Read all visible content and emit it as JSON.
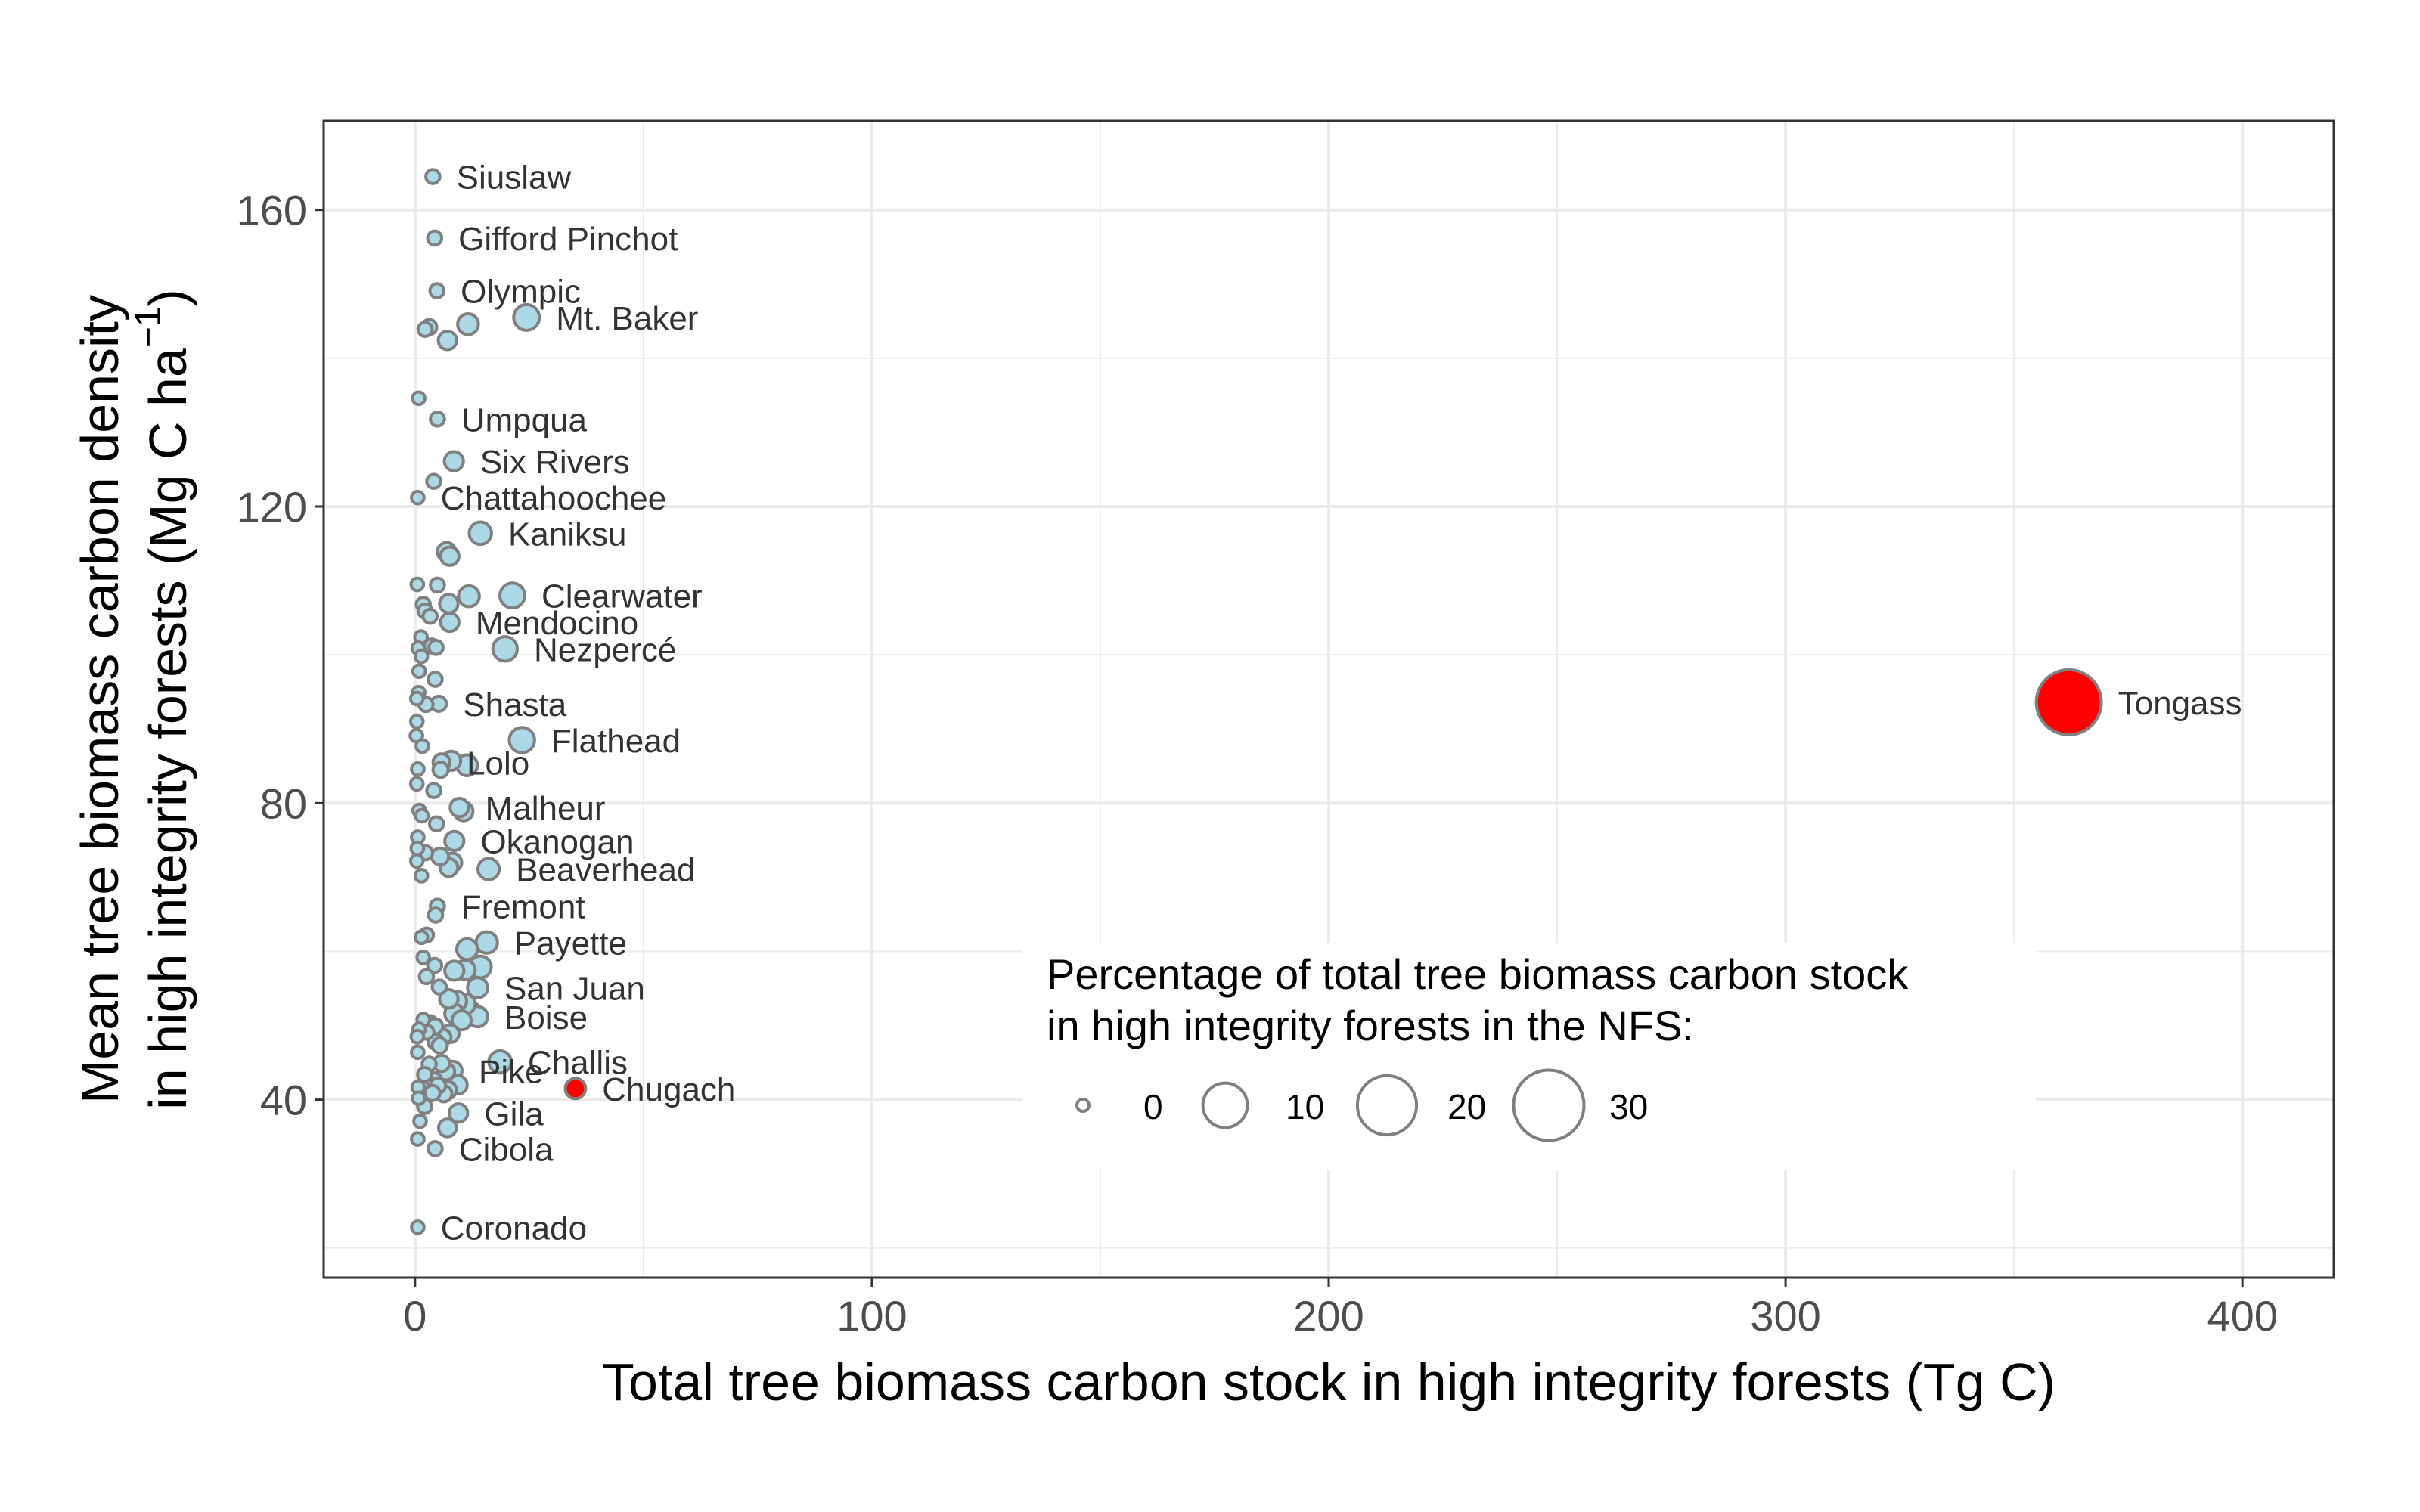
{
  "chart_data": {
    "type": "scatter",
    "title": "",
    "xlabel": "Total tree biomass carbon stock in high integrity forests (Tg C)",
    "ylabel_line1": "Mean tree biomass carbon density",
    "ylabel_line2": "in high integrity forests (Mg C ha",
    "ylabel_superscript": "−1",
    "ylabel_close": ")",
    "xlim": [
      -20,
      420
    ],
    "ylim": [
      16,
      172
    ],
    "x_ticks": [
      0,
      100,
      200,
      300,
      400
    ],
    "y_ticks": [
      40,
      80,
      120,
      160
    ],
    "grid": true,
    "colors": {
      "default_fill": "#add8e6",
      "highlight_fill": "#ff0000",
      "point_stroke": "#808080",
      "panel_border": "#333333",
      "grid": "#ebebeb"
    },
    "legend": {
      "title_line1": "Percentage of total tree biomass carbon stock",
      "title_line2": "in high integrity forests in the NFS:",
      "placement": "bottom-right inside panel",
      "sizes": [
        0,
        10,
        20,
        30
      ],
      "labels": [
        "0",
        "10",
        "20",
        "30"
      ]
    },
    "points": [
      {
        "x": 3.9,
        "y": 164.5,
        "pct": 0.2,
        "label": "Siuslaw"
      },
      {
        "x": 4.3,
        "y": 156.2,
        "pct": 0.2,
        "label": "Gifford Pinchot"
      },
      {
        "x": 4.8,
        "y": 149.1,
        "pct": 0.2,
        "label": "Olympic"
      },
      {
        "x": 24.4,
        "y": 145.5,
        "pct": 2.2,
        "label": "Mt. Baker"
      },
      {
        "x": 11.6,
        "y": 144.6,
        "pct": 1.1
      },
      {
        "x": 3.1,
        "y": 144.2,
        "pct": 0.3
      },
      {
        "x": 2.2,
        "y": 143.9,
        "pct": 0.2
      },
      {
        "x": 7.1,
        "y": 142.4,
        "pct": 0.7
      },
      {
        "x": 0.8,
        "y": 134.6,
        "pct": 0.1
      },
      {
        "x": 4.9,
        "y": 131.8,
        "pct": 0.2,
        "label": "Umpqua"
      },
      {
        "x": 8.5,
        "y": 126.1,
        "pct": 0.8,
        "label": "Six Rivers"
      },
      {
        "x": 4.1,
        "y": 123.4,
        "pct": 0.2
      },
      {
        "x": 0.6,
        "y": 121.2,
        "pct": 0.1,
        "label": "Chattahoochee"
      },
      {
        "x": 14.3,
        "y": 116.4,
        "pct": 1.4,
        "label": "Kaniksu"
      },
      {
        "x": 6.9,
        "y": 113.9,
        "pct": 0.7
      },
      {
        "x": 7.6,
        "y": 113.3,
        "pct": 0.7
      },
      {
        "x": 21.3,
        "y": 108.0,
        "pct": 2.0,
        "label": "Clearwater"
      },
      {
        "x": 11.8,
        "y": 107.9,
        "pct": 1.1
      },
      {
        "x": 7.4,
        "y": 106.9,
        "pct": 0.7
      },
      {
        "x": 0.5,
        "y": 109.5,
        "pct": 0.1
      },
      {
        "x": 4.9,
        "y": 109.4,
        "pct": 0.2
      },
      {
        "x": 1.8,
        "y": 106.8,
        "pct": 0.2
      },
      {
        "x": 2.2,
        "y": 105.9,
        "pct": 0.2
      },
      {
        "x": 3.3,
        "y": 105.2,
        "pct": 0.2
      },
      {
        "x": 7.6,
        "y": 104.4,
        "pct": 0.7,
        "label": "Mendocino"
      },
      {
        "x": 19.7,
        "y": 100.8,
        "pct": 1.9,
        "label": "Nezpercé"
      },
      {
        "x": 1.3,
        "y": 102.4,
        "pct": 0.1
      },
      {
        "x": 0.7,
        "y": 100.9,
        "pct": 0.1
      },
      {
        "x": 3.6,
        "y": 101.2,
        "pct": 0.2
      },
      {
        "x": 4.6,
        "y": 101.0,
        "pct": 0.2
      },
      {
        "x": 1.4,
        "y": 99.8,
        "pct": 0.1
      },
      {
        "x": 0.9,
        "y": 97.8,
        "pct": 0.1
      },
      {
        "x": 4.4,
        "y": 96.7,
        "pct": 0.2
      },
      {
        "x": 0.8,
        "y": 94.9,
        "pct": 0.1
      },
      {
        "x": 0.4,
        "y": 94.1,
        "pct": 0.1
      },
      {
        "x": 2.4,
        "y": 93.3,
        "pct": 0.2
      },
      {
        "x": 5.2,
        "y": 93.4,
        "pct": 0.3,
        "label": "Shasta"
      },
      {
        "x": 0.4,
        "y": 91.0,
        "pct": 0.1
      },
      {
        "x": 0.3,
        "y": 89.1,
        "pct": 0.1
      },
      {
        "x": 1.6,
        "y": 87.7,
        "pct": 0.1
      },
      {
        "x": 23.4,
        "y": 88.5,
        "pct": 2.1,
        "label": "Flathead"
      },
      {
        "x": 7.9,
        "y": 85.7,
        "pct": 0.8
      },
      {
        "x": 11.4,
        "y": 85.1,
        "pct": 1.1
      },
      {
        "x": 5.8,
        "y": 85.5,
        "pct": 0.5,
        "label": "Lolo"
      },
      {
        "x": 5.6,
        "y": 84.5,
        "pct": 0.3
      },
      {
        "x": 0.6,
        "y": 84.6,
        "pct": 0.1
      },
      {
        "x": 0.4,
        "y": 82.6,
        "pct": 0.1
      },
      {
        "x": 4.1,
        "y": 81.7,
        "pct": 0.2
      },
      {
        "x": 9.7,
        "y": 79.4,
        "pct": 0.7,
        "label": "Malheur"
      },
      {
        "x": 10.6,
        "y": 78.9,
        "pct": 0.8
      },
      {
        "x": 0.9,
        "y": 79.0,
        "pct": 0.1
      },
      {
        "x": 1.5,
        "y": 78.3,
        "pct": 0.1
      },
      {
        "x": 4.7,
        "y": 77.2,
        "pct": 0.2
      },
      {
        "x": 0.6,
        "y": 75.4,
        "pct": 0.1
      },
      {
        "x": 8.6,
        "y": 74.9,
        "pct": 0.8,
        "label": "Okanogan"
      },
      {
        "x": 0.5,
        "y": 73.9,
        "pct": 0.1
      },
      {
        "x": 2.3,
        "y": 73.3,
        "pct": 0.2
      },
      {
        "x": 5.5,
        "y": 72.8,
        "pct": 0.5
      },
      {
        "x": 8.2,
        "y": 72.0,
        "pct": 0.7
      },
      {
        "x": 7.4,
        "y": 71.3,
        "pct": 0.6
      },
      {
        "x": 16.1,
        "y": 71.1,
        "pct": 1.2,
        "label": "Beaverhead"
      },
      {
        "x": 0.4,
        "y": 72.2,
        "pct": 0.1
      },
      {
        "x": 1.4,
        "y": 70.2,
        "pct": 0.1
      },
      {
        "x": 4.9,
        "y": 66.1,
        "pct": 0.2,
        "label": "Fremont"
      },
      {
        "x": 4.5,
        "y": 64.9,
        "pct": 0.2
      },
      {
        "x": 15.7,
        "y": 61.2,
        "pct": 1.2,
        "label": "Payette"
      },
      {
        "x": 2.5,
        "y": 62.2,
        "pct": 0.2
      },
      {
        "x": 1.4,
        "y": 61.9,
        "pct": 0.1
      },
      {
        "x": 11.4,
        "y": 60.3,
        "pct": 1.1
      },
      {
        "x": 1.8,
        "y": 59.2,
        "pct": 0.1
      },
      {
        "x": 4.3,
        "y": 58.1,
        "pct": 0.2
      },
      {
        "x": 14.3,
        "y": 57.9,
        "pct": 1.3
      },
      {
        "x": 8.6,
        "y": 57.4,
        "pct": 0.8
      },
      {
        "x": 11.0,
        "y": 57.5,
        "pct": 0.9
      },
      {
        "x": 2.5,
        "y": 56.6,
        "pct": 0.2
      },
      {
        "x": 13.7,
        "y": 55.1,
        "pct": 1.0,
        "label": "San Juan"
      },
      {
        "x": 5.3,
        "y": 55.2,
        "pct": 0.2
      },
      {
        "x": 7.4,
        "y": 53.6,
        "pct": 0.7
      },
      {
        "x": 9.2,
        "y": 53.3,
        "pct": 0.8
      },
      {
        "x": 11.0,
        "y": 52.9,
        "pct": 0.9
      },
      {
        "x": 12.4,
        "y": 51.7,
        "pct": 1.0
      },
      {
        "x": 13.7,
        "y": 51.2,
        "pct": 1.0,
        "label": "Boise"
      },
      {
        "x": 8.6,
        "y": 51.6,
        "pct": 0.8
      },
      {
        "x": 10.2,
        "y": 50.7,
        "pct": 0.8
      },
      {
        "x": 1.8,
        "y": 50.8,
        "pct": 0.1
      },
      {
        "x": 3.3,
        "y": 50.3,
        "pct": 0.3
      },
      {
        "x": 4.4,
        "y": 49.9,
        "pct": 0.3
      },
      {
        "x": 0.9,
        "y": 49.5,
        "pct": 0.1
      },
      {
        "x": 2.6,
        "y": 49.1,
        "pct": 0.2
      },
      {
        "x": 7.7,
        "y": 48.9,
        "pct": 0.6
      },
      {
        "x": 6.1,
        "y": 48.4,
        "pct": 0.4
      },
      {
        "x": 0.5,
        "y": 48.5,
        "pct": 0.1
      },
      {
        "x": 4.5,
        "y": 47.8,
        "pct": 0.3
      },
      {
        "x": 5.4,
        "y": 47.3,
        "pct": 0.3
      },
      {
        "x": 0.6,
        "y": 46.4,
        "pct": 0.1
      },
      {
        "x": 18.6,
        "y": 45.1,
        "pct": 1.4,
        "label": "Challis"
      },
      {
        "x": 3.1,
        "y": 44.8,
        "pct": 0.2
      },
      {
        "x": 5.8,
        "y": 44.9,
        "pct": 0.4
      },
      {
        "x": 6.8,
        "y": 43.8,
        "pct": 0.5
      },
      {
        "x": 8.2,
        "y": 43.9,
        "pct": 0.8,
        "label": "Pike"
      },
      {
        "x": 2.1,
        "y": 43.4,
        "pct": 0.2
      },
      {
        "x": 4.2,
        "y": 42.6,
        "pct": 0.3
      },
      {
        "x": 5.0,
        "y": 41.9,
        "pct": 0.3
      },
      {
        "x": 9.4,
        "y": 42.0,
        "pct": 0.7
      },
      {
        "x": 0.7,
        "y": 41.7,
        "pct": 0.1
      },
      {
        "x": 7.1,
        "y": 41.3,
        "pct": 0.6
      },
      {
        "x": 3.8,
        "y": 40.9,
        "pct": 0.3
      },
      {
        "x": 6.3,
        "y": 40.8,
        "pct": 0.4
      },
      {
        "x": 0.8,
        "y": 40.2,
        "pct": 0.1
      },
      {
        "x": 35.1,
        "y": 41.5,
        "pct": 1.0,
        "label": "Chugach",
        "highlight": true
      },
      {
        "x": 2.1,
        "y": 39.1,
        "pct": 0.2
      },
      {
        "x": 9.5,
        "y": 38.2,
        "pct": 0.7,
        "label": "Gila"
      },
      {
        "x": 1.1,
        "y": 37.1,
        "pct": 0.1
      },
      {
        "x": 7.1,
        "y": 36.2,
        "pct": 0.6
      },
      {
        "x": 0.6,
        "y": 34.7,
        "pct": 0.1
      },
      {
        "x": 4.4,
        "y": 33.4,
        "pct": 0.2,
        "label": "Cibola"
      },
      {
        "x": 0.6,
        "y": 22.8,
        "pct": 0.1,
        "label": "Coronado"
      },
      {
        "x": 362.0,
        "y": 93.6,
        "pct": 25.0,
        "label": "Tongass",
        "highlight": true
      }
    ]
  }
}
